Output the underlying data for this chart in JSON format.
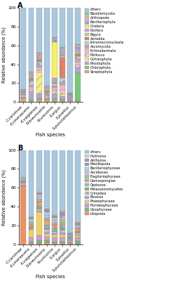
{
  "fish_species": [
    "C.carolinae",
    "K.cinerascens",
    "K.vaigiensis",
    "N.brevirostris",
    "N.unicornis",
    "S.argus",
    "S.puellus",
    "S.punctatissimus"
  ],
  "chartA_categories": [
    "Streptophyta",
    "Chlorophyta",
    "Rhodophyta",
    "Ochreophyta",
    "Mollusca",
    "Echinodermata",
    "Ascomycota",
    "Intramacronucleata",
    "Annelida",
    "Bigyra",
    "Porifera",
    "Cnidaria",
    "Bacillariophyta",
    "Arthropoda",
    "Basidiomycota",
    "others"
  ],
  "chartA_colors": [
    "#e8a07a",
    "#78c878",
    "#b8a0d8",
    "#f5f078",
    "#f0c8d8",
    "#f0b8c8",
    "#c8a8a0",
    "#a8d8e8",
    "#f08060",
    "#a0d8a0",
    "#d0a0d8",
    "#f5f060",
    "#90b8e8",
    "#e8a8b0",
    "#90c890",
    "#a8c8e0"
  ],
  "chartA_data": {
    "C.carolinae": [
      3.5,
      1.0,
      1.0,
      0.0,
      1.0,
      1.0,
      1.0,
      1.0,
      1.0,
      0.5,
      0.5,
      0.0,
      1.0,
      0.5,
      0.5,
      86.0
    ],
    "K.cinerascens": [
      1.0,
      2.0,
      8.0,
      0.5,
      2.0,
      2.0,
      2.0,
      5.0,
      2.0,
      1.0,
      2.0,
      0.5,
      2.0,
      1.0,
      1.0,
      67.0
    ],
    "K.vaigiensis": [
      2.0,
      2.0,
      5.0,
      22.0,
      2.0,
      3.0,
      2.0,
      4.0,
      2.0,
      1.0,
      2.0,
      0.5,
      1.0,
      2.0,
      1.0,
      46.5
    ],
    "N.brevirostris": [
      2.0,
      1.0,
      1.0,
      0.5,
      1.5,
      1.0,
      1.0,
      1.5,
      2.0,
      1.0,
      2.0,
      0.5,
      1.0,
      1.0,
      0.5,
      82.5
    ],
    "N.unicornis": [
      1.0,
      3.0,
      5.0,
      2.0,
      2.0,
      2.0,
      2.0,
      2.0,
      2.0,
      1.0,
      3.0,
      38.0,
      2.0,
      2.0,
      1.0,
      31.0
    ],
    "S.argus": [
      1.0,
      2.0,
      3.0,
      2.0,
      5.0,
      5.0,
      3.0,
      4.0,
      22.0,
      2.0,
      2.0,
      0.5,
      3.0,
      2.0,
      1.0,
      41.5
    ],
    "S.puellus": [
      1.5,
      1.0,
      2.0,
      0.0,
      0.5,
      0.5,
      0.5,
      0.5,
      1.0,
      0.5,
      0.5,
      0.0,
      0.5,
      0.5,
      0.5,
      90.0
    ],
    "S.punctatissimus": [
      1.0,
      30.0,
      5.0,
      0.0,
      3.0,
      3.0,
      3.0,
      3.0,
      3.0,
      2.0,
      3.0,
      0.0,
      2.0,
      2.0,
      1.0,
      38.0
    ]
  },
  "chartB_categories": [
    "Litopsida",
    "Ulvophyceae",
    "Florideophyceae",
    "Phaeophyceae",
    "Bivalvia",
    "Crinoidea",
    "Malasseziomycetes",
    "Opalozoa",
    "Demospongiae",
    "Fragilariophyceae",
    "Ascidiacea",
    "Bacillariophyceae",
    "Maxillopoda",
    "Anthozoa",
    "Hydrozoa",
    "others"
  ],
  "chartB_colors": [
    "#f09060",
    "#78b878",
    "#c8a0d0",
    "#f0d060",
    "#90b8e8",
    "#f0c0d0",
    "#a8a870",
    "#78c8c8",
    "#f0a070",
    "#98c898",
    "#d0b8e8",
    "#a8d8e8",
    "#9898c8",
    "#c89090",
    "#b8d8e8",
    "#a8c8e0"
  ],
  "chartB_data": {
    "C.carolinae": [
      62.0,
      0.5,
      3.0,
      0.0,
      0.5,
      0.0,
      0.5,
      0.0,
      1.0,
      0.5,
      0.5,
      1.0,
      0.5,
      0.5,
      1.5,
      28.0
    ],
    "K.cinerascens": [
      1.0,
      2.0,
      4.0,
      8.0,
      1.0,
      0.5,
      1.0,
      1.0,
      3.0,
      1.0,
      2.0,
      2.0,
      1.0,
      1.0,
      1.0,
      70.5
    ],
    "K.vaigiensis": [
      1.0,
      3.0,
      5.0,
      25.0,
      1.5,
      1.0,
      2.0,
      2.0,
      5.0,
      2.0,
      3.0,
      2.0,
      1.0,
      1.0,
      1.5,
      43.0
    ],
    "N.brevirostris": [
      2.0,
      2.0,
      4.0,
      3.0,
      2.0,
      2.0,
      2.0,
      3.0,
      5.0,
      3.0,
      3.0,
      3.0,
      2.0,
      2.0,
      2.0,
      60.0
    ],
    "N.unicornis": [
      1.0,
      2.0,
      4.0,
      3.0,
      2.0,
      1.0,
      1.0,
      3.0,
      4.0,
      2.0,
      3.0,
      2.0,
      1.0,
      1.0,
      1.0,
      69.0
    ],
    "S.argus": [
      0.5,
      2.0,
      5.0,
      3.0,
      2.0,
      2.0,
      2.0,
      3.0,
      3.0,
      3.0,
      3.0,
      2.0,
      2.0,
      2.0,
      2.0,
      63.5
    ],
    "S.puellus": [
      1.0,
      1.0,
      2.0,
      0.5,
      1.0,
      0.5,
      0.5,
      0.5,
      2.0,
      0.5,
      0.5,
      1.0,
      0.5,
      0.5,
      0.5,
      88.0
    ],
    "S.punctatissimus": [
      0.5,
      3.0,
      4.0,
      2.0,
      1.0,
      1.0,
      1.0,
      1.0,
      3.0,
      1.0,
      2.0,
      1.0,
      1.0,
      1.0,
      1.0,
      76.5
    ]
  },
  "ylabel": "Relative abundance (%)",
  "xlabel": "Fish species",
  "ylim": [
    0,
    100
  ],
  "yticks": [
    0,
    20,
    40,
    60,
    80,
    100
  ],
  "background_color": "#ffffff",
  "panel_labels": [
    "A",
    "B"
  ]
}
